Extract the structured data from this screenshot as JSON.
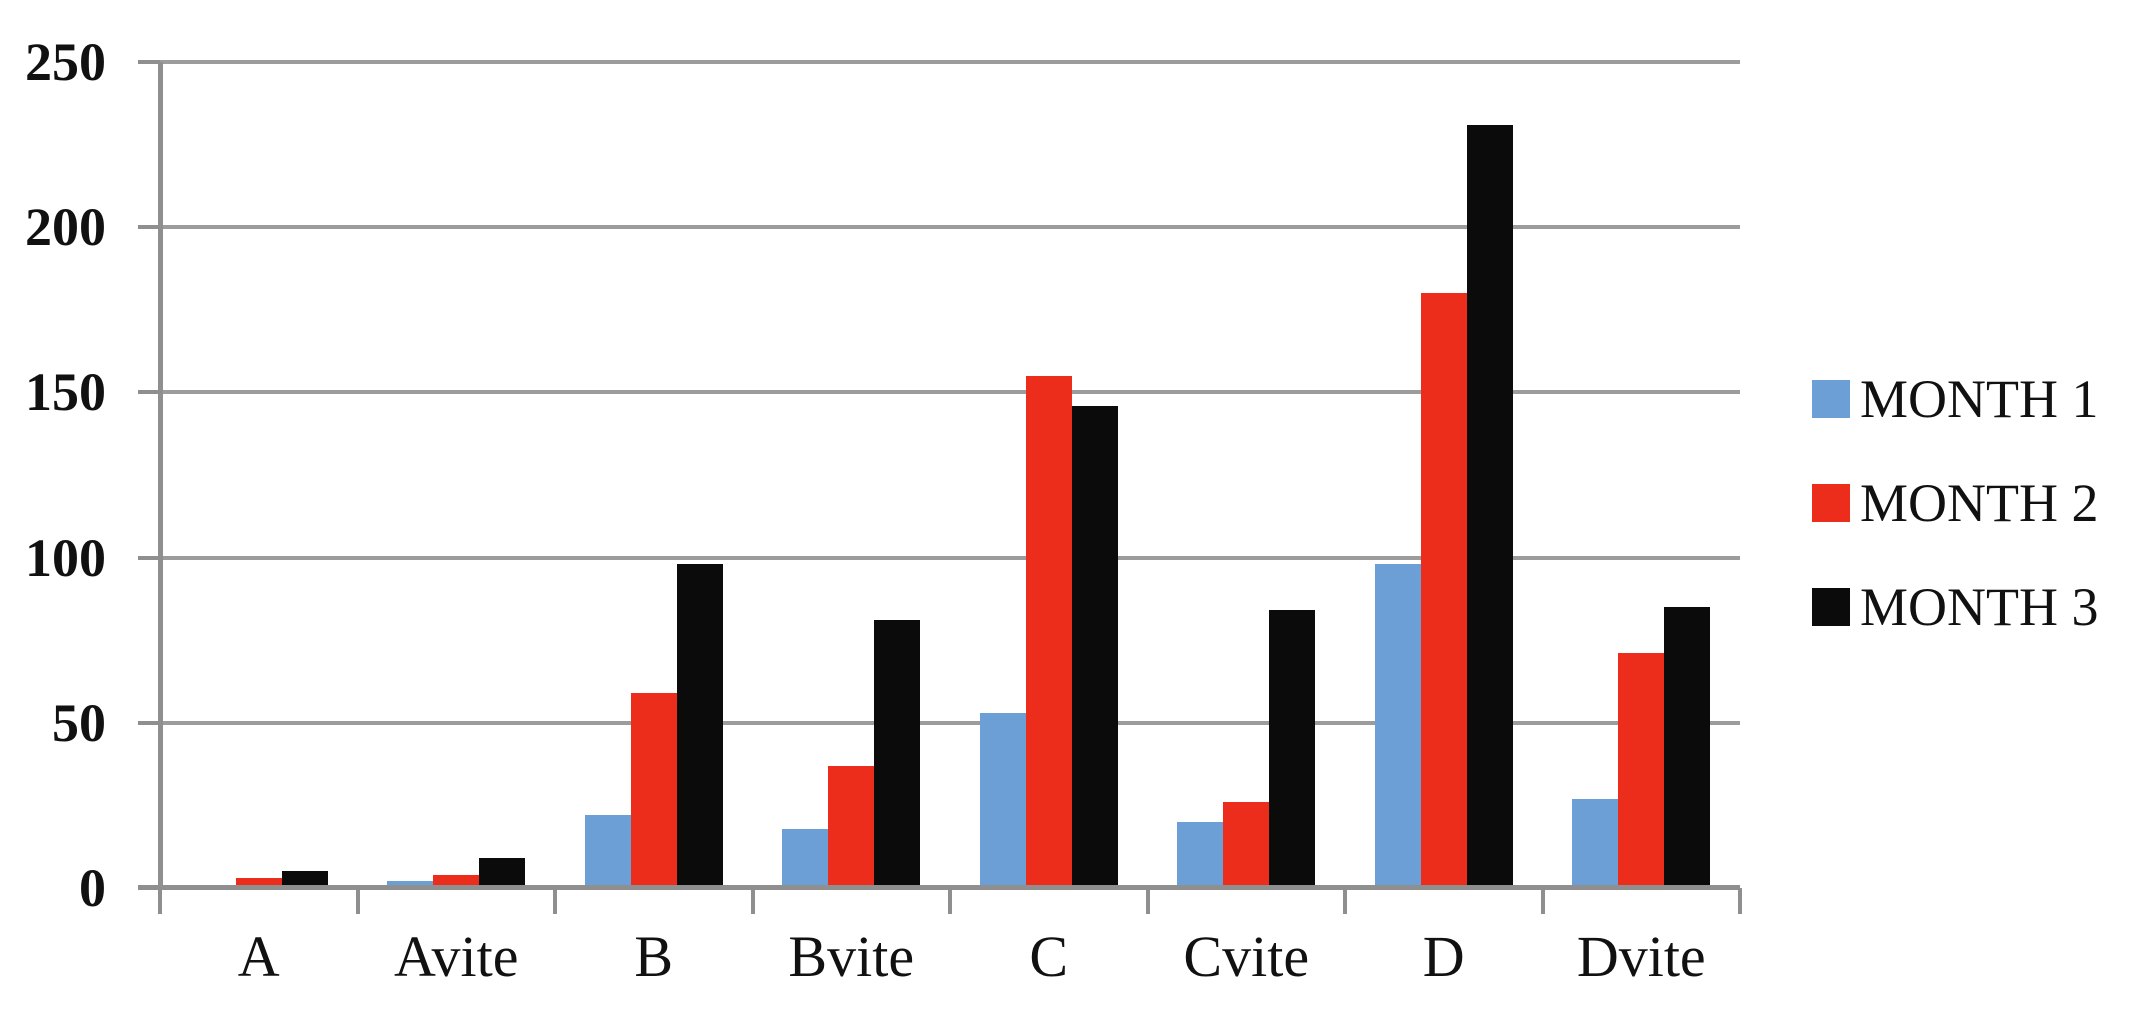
{
  "chart_data": {
    "type": "bar",
    "title": "",
    "xlabel": "",
    "ylabel": "",
    "categories": [
      "A",
      "Avite",
      "B",
      "Bvite",
      "C",
      "Cvite",
      "D",
      "Dvite"
    ],
    "series": [
      {
        "name": "MONTH 1",
        "color": "#6B9FD6",
        "values": [
          1,
          2,
          22,
          18,
          53,
          20,
          98,
          27
        ]
      },
      {
        "name": "MONTH 2",
        "color": "#ED2D1C",
        "values": [
          3,
          4,
          59,
          37,
          155,
          26,
          180,
          71
        ]
      },
      {
        "name": "MONTH 3",
        "color": "#0B0B0B",
        "values": [
          5,
          9,
          98,
          81,
          146,
          84,
          231,
          85
        ]
      }
    ],
    "y_ticks": [
      0,
      50,
      100,
      150,
      200,
      250
    ],
    "ylim": [
      0,
      250
    ],
    "grid": "horizontal",
    "legend_position": "right"
  },
  "colors": {
    "background": "#ffffff",
    "gridline": "#9c9c9c",
    "axis": "#8f8f8f",
    "text": "#111111"
  }
}
